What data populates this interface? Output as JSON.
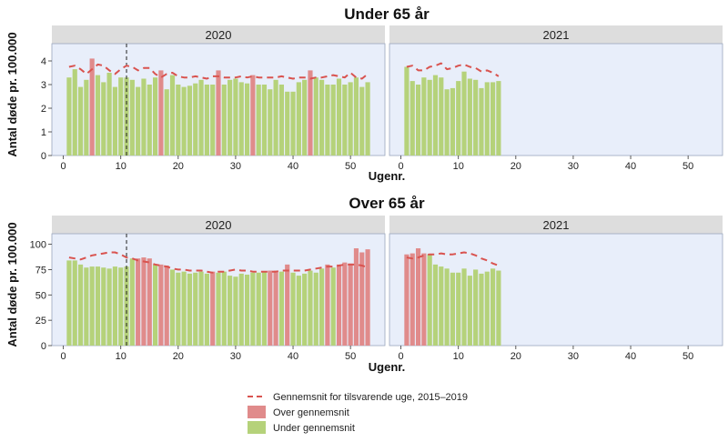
{
  "colors": {
    "over": "#e08b8b",
    "under": "#b5d27a",
    "avg_line": "#d9534f",
    "panel_bg": "#e8eefa",
    "strip_bg": "#dddddd"
  },
  "legend": {
    "line_label": "Gennemsnit for tilsvarende uge, 2015–2019",
    "over_label": "Over gennemsnit",
    "under_label": "Under gennemsnit"
  },
  "chart_data": [
    {
      "type": "bar",
      "title": "Under 65 år",
      "ylabel": "Antal døde pr. 100.000",
      "xlabel": "Ugenr.",
      "facets": [
        "2020",
        "2021"
      ],
      "xlim": [
        -2,
        56
      ],
      "ylim": [
        0,
        4.5
      ],
      "x_ticks": [
        0,
        10,
        20,
        30,
        40,
        50
      ],
      "y_ticks": [
        0,
        1,
        2,
        3,
        4
      ],
      "vline_week_2020": 11,
      "series": {
        "2020": {
          "weeks": [
            1,
            2,
            3,
            4,
            5,
            6,
            7,
            8,
            9,
            10,
            11,
            12,
            13,
            14,
            15,
            16,
            17,
            18,
            19,
            20,
            21,
            22,
            23,
            24,
            25,
            26,
            27,
            28,
            29,
            30,
            31,
            32,
            33,
            34,
            35,
            36,
            37,
            38,
            39,
            40,
            41,
            42,
            43,
            44,
            45,
            46,
            47,
            48,
            49,
            50,
            51,
            52,
            53
          ],
          "values": [
            3.3,
            3.65,
            2.9,
            3.2,
            4.1,
            3.4,
            3.1,
            3.5,
            2.9,
            3.3,
            3.3,
            3.2,
            2.9,
            3.25,
            3.0,
            3.3,
            3.6,
            2.8,
            3.4,
            3.0,
            2.9,
            2.95,
            3.05,
            3.2,
            3.0,
            3.0,
            3.6,
            3.0,
            3.2,
            3.25,
            3.1,
            3.05,
            3.4,
            3.0,
            3.0,
            2.8,
            3.2,
            3.0,
            2.7,
            2.7,
            3.1,
            3.2,
            3.6,
            3.3,
            3.2,
            3.0,
            3.0,
            3.25,
            3.0,
            3.1,
            3.3,
            2.9,
            3.1
          ],
          "average": [
            3.75,
            3.8,
            3.65,
            3.45,
            3.65,
            3.85,
            3.8,
            3.6,
            3.45,
            3.65,
            3.8,
            3.75,
            3.6,
            3.7,
            3.7,
            3.45,
            3.3,
            3.45,
            3.5,
            3.35,
            3.3,
            3.3,
            3.35,
            3.3,
            3.25,
            3.35,
            3.35,
            3.3,
            3.3,
            3.3,
            3.35,
            3.3,
            3.35,
            3.3,
            3.3,
            3.3,
            3.3,
            3.35,
            3.3,
            3.25,
            3.3,
            3.3,
            3.25,
            3.3,
            3.3,
            3.35,
            3.4,
            3.35,
            3.3,
            3.5,
            3.3,
            3.25,
            3.45
          ]
        },
        "2021": {
          "weeks": [
            1,
            2,
            3,
            4,
            5,
            6,
            7,
            8,
            9,
            10,
            11,
            12,
            13,
            14,
            15,
            16,
            17
          ],
          "values": [
            3.75,
            3.15,
            3.0,
            3.3,
            3.2,
            3.4,
            3.3,
            2.8,
            2.85,
            3.15,
            3.55,
            3.25,
            3.2,
            2.85,
            3.1,
            3.1,
            3.15
          ],
          "average": [
            3.75,
            3.8,
            3.6,
            3.6,
            3.75,
            3.8,
            3.9,
            3.65,
            3.7,
            3.8,
            3.85,
            3.75,
            3.7,
            3.55,
            3.6,
            3.5,
            3.35
          ]
        }
      }
    },
    {
      "type": "bar",
      "title": "Over 65 år",
      "ylabel": "Antal døde pr. 100.000",
      "xlabel": "Ugenr.",
      "facets": [
        "2020",
        "2021"
      ],
      "xlim": [
        -2,
        56
      ],
      "ylim": [
        0,
        105
      ],
      "x_ticks": [
        0,
        10,
        20,
        30,
        40,
        50
      ],
      "y_ticks": [
        0,
        25,
        50,
        75,
        100
      ],
      "vline_week_2020": 11,
      "series": {
        "2020": {
          "weeks": [
            1,
            2,
            3,
            4,
            5,
            6,
            7,
            8,
            9,
            10,
            11,
            12,
            13,
            14,
            15,
            16,
            17,
            18,
            19,
            20,
            21,
            22,
            23,
            24,
            25,
            26,
            27,
            28,
            29,
            30,
            31,
            32,
            33,
            34,
            35,
            36,
            37,
            38,
            39,
            40,
            41,
            42,
            43,
            44,
            45,
            46,
            47,
            48,
            49,
            50,
            51,
            52,
            53
          ],
          "values": [
            84,
            84,
            80,
            77,
            78,
            78,
            77,
            76,
            78,
            77,
            78,
            86,
            86,
            87,
            86,
            80,
            80,
            79,
            75,
            72,
            73,
            71,
            72,
            73,
            71,
            73,
            72,
            73,
            69,
            68,
            71,
            70,
            72,
            72,
            73,
            74,
            74,
            73,
            80,
            72,
            69,
            71,
            74,
            72,
            76,
            80,
            77,
            80,
            82,
            81,
            96,
            92,
            95
          ],
          "average": [
            87,
            86,
            85,
            87,
            89,
            90,
            91,
            92,
            92,
            90,
            87,
            86,
            84,
            83,
            82,
            80,
            79,
            78,
            76,
            75,
            75,
            74,
            74,
            74,
            73,
            72,
            73,
            73,
            74,
            75,
            74,
            74,
            73,
            73,
            73,
            73,
            73,
            74,
            74,
            74,
            74,
            74,
            75,
            76,
            77,
            78,
            78,
            79,
            80,
            80,
            80,
            79,
            77
          ]
        },
        "2021": {
          "weeks": [
            1,
            2,
            3,
            4,
            5,
            6,
            7,
            8,
            9,
            10,
            11,
            12,
            13,
            14,
            15,
            16,
            17
          ],
          "values": [
            90,
            91,
            96,
            91,
            90,
            80,
            78,
            76,
            72,
            72,
            76,
            69,
            75,
            71,
            73,
            76,
            74
          ],
          "average": [
            87,
            86,
            87,
            89,
            90,
            90,
            91,
            90,
            90,
            91,
            92,
            91,
            89,
            86,
            84,
            81,
            79
          ]
        }
      }
    }
  ]
}
